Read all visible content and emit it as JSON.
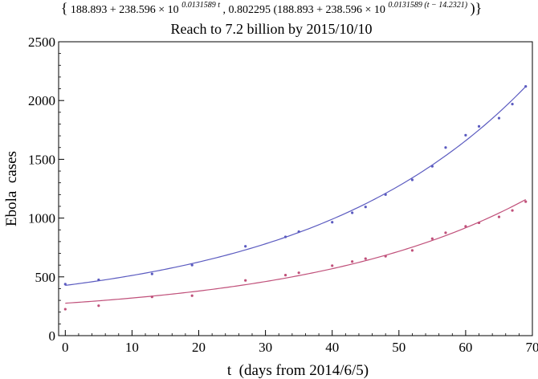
{
  "chart_data": {
    "type": "scatter",
    "formula_title": {
      "open_brace": "{",
      "part1_base": "188.893 + 238.596 × 10",
      "part1_exp": "0.0131589 t",
      "sep": ", 0.802295 (188.893 + 238.596 × 10",
      "part2_exp": "0.0131589 (t − 14.2321)",
      "close": ")}"
    },
    "title": "Reach to 7.2 billion by 2015/10/10",
    "xlabel": "t  (days from 2014/6/5)",
    "ylabel": "Ebola  cases",
    "xlim": [
      -1,
      70
    ],
    "ylim": [
      0,
      2500
    ],
    "xticks": [
      0,
      10,
      20,
      30,
      40,
      50,
      60,
      70
    ],
    "yticks": [
      0,
      500,
      1000,
      1500,
      2000,
      2500
    ],
    "grid": false,
    "legend": "none",
    "series": [
      {
        "color": "#5b5bc0",
        "x": [
          0,
          5,
          13,
          19,
          27,
          33,
          35,
          40,
          43,
          45,
          48,
          52,
          55,
          57,
          60,
          62,
          65,
          67,
          69
        ],
        "y": [
          438,
          475,
          525,
          600,
          760,
          840,
          885,
          965,
          1045,
          1095,
          1200,
          1325,
          1440,
          1600,
          1705,
          1780,
          1850,
          1970,
          2120
        ],
        "fit": {
          "a": 188.893,
          "b": 238.596,
          "k": 0.0131589,
          "shift": 0,
          "scale": 1
        }
      },
      {
        "color": "#c0507a",
        "x": [
          0,
          5,
          13,
          19,
          27,
          33,
          35,
          40,
          43,
          45,
          48,
          52,
          55,
          57,
          60,
          62,
          65,
          67,
          69
        ],
        "y": [
          225,
          255,
          330,
          340,
          470,
          515,
          535,
          595,
          630,
          655,
          675,
          725,
          825,
          875,
          930,
          960,
          1010,
          1065,
          1140
        ],
        "fit": {
          "a": 188.893,
          "b": 238.596,
          "k": 0.0131589,
          "shift": 14.2321,
          "scale": 0.802295
        }
      }
    ]
  }
}
